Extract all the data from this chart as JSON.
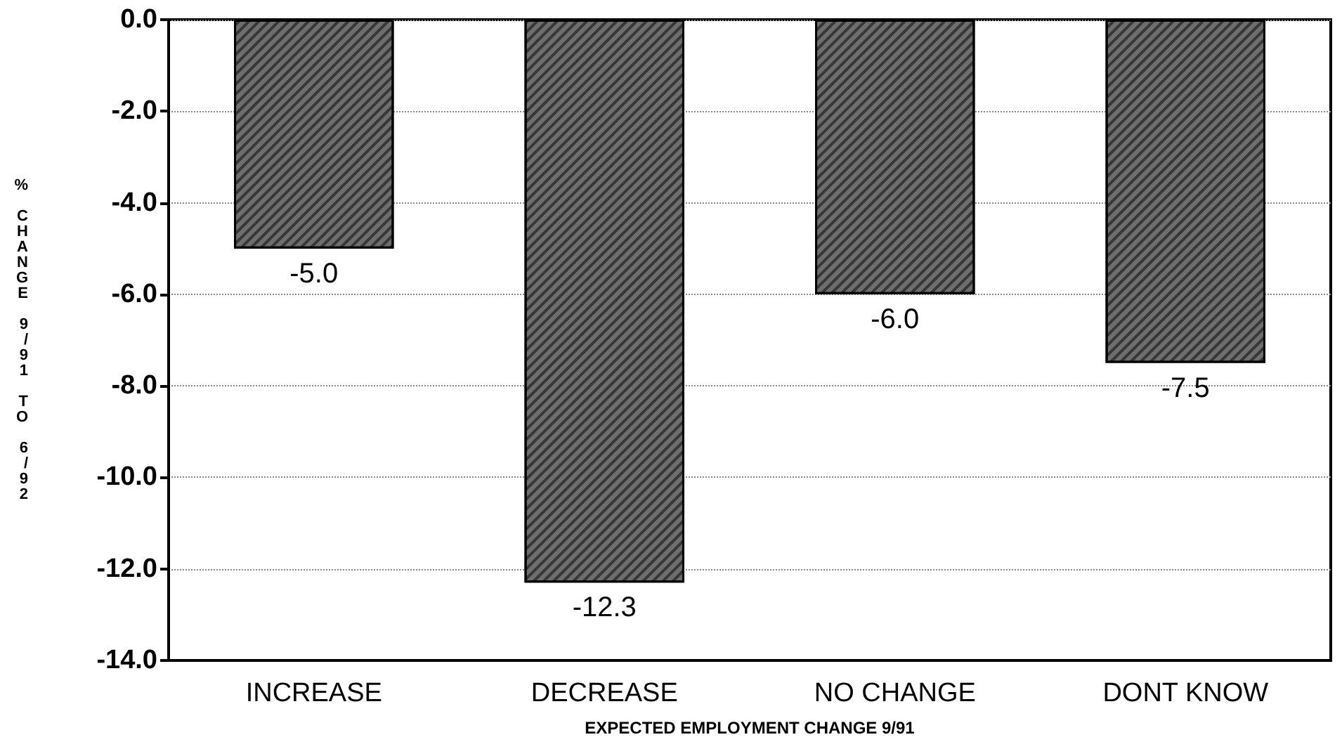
{
  "chart_data": {
    "type": "bar",
    "xlabel": "EXPECTED EMPLOYMENT CHANGE 9/91",
    "ylabel": "% CHANGE 9/91 TO 6/92",
    "categories": [
      "INCREASE",
      "DECREASE",
      "NO CHANGE",
      "DONT KNOW"
    ],
    "values": [
      -5.0,
      -12.3,
      -6.0,
      -7.5
    ],
    "color": "#6e6e6e",
    "value_labels": [
      "-5.0",
      "-12.3",
      "-6.0",
      "-7.5"
    ],
    "ylim": [
      -14,
      0
    ],
    "yticks": [
      {
        "value": -14,
        "label": "-14.0"
      },
      {
        "value": -12,
        "label": "-12.0"
      },
      {
        "value": -10,
        "label": "-10.0"
      },
      {
        "value": -8,
        "label": "-8.0"
      },
      {
        "value": -6,
        "label": "-6.0"
      },
      {
        "value": -4,
        "label": "-4.0"
      },
      {
        "value": -2,
        "label": "-2.0"
      },
      {
        "value": 0,
        "label": "0.0"
      }
    ],
    "grid": "y"
  }
}
